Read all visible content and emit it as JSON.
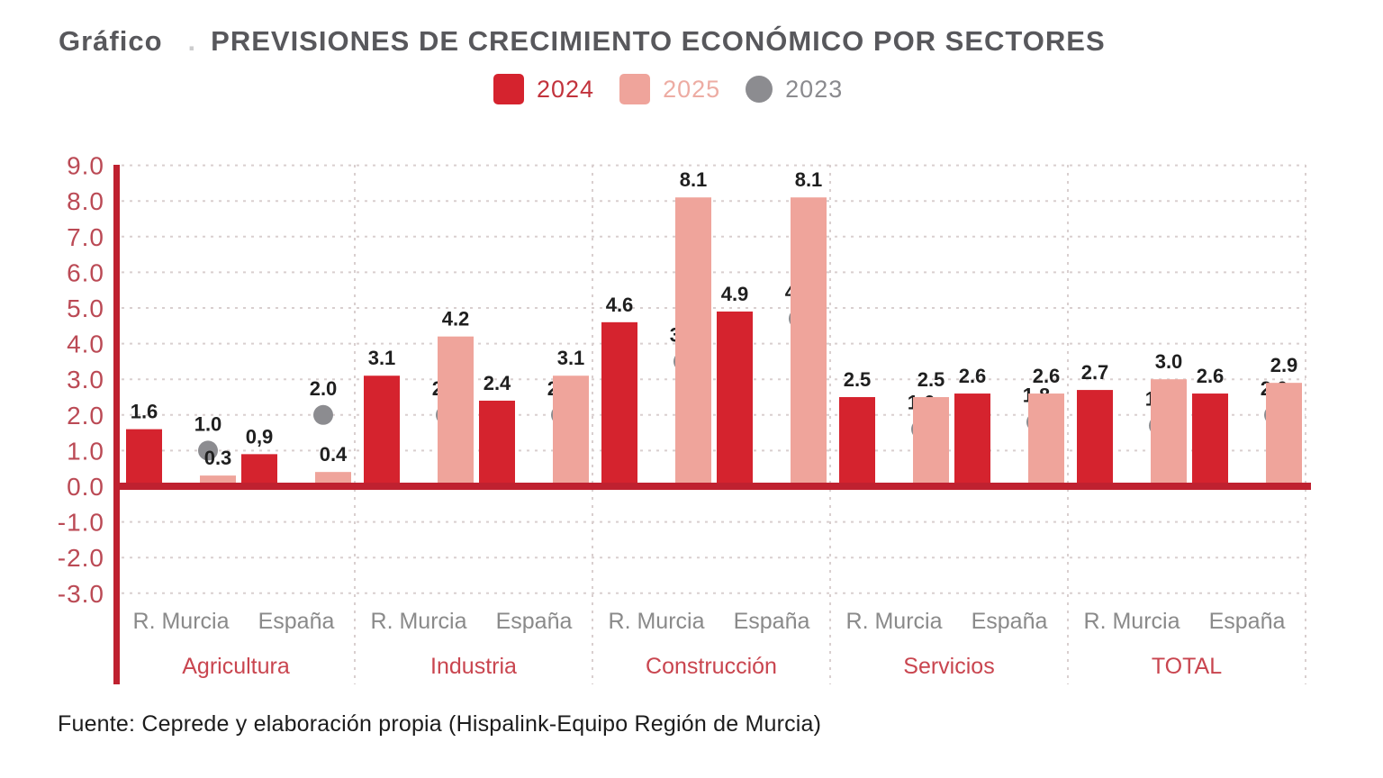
{
  "header": {
    "title_prefix": "Gráfico",
    "title_separator": ".",
    "title_main": "PREVISIONES DE CRECIMIENTO ECONÓMICO POR SECTORES"
  },
  "legend": {
    "items": [
      {
        "label": "2024",
        "shape": "square",
        "color": "#d5232e",
        "text_color": "#c2333c"
      },
      {
        "label": "2025",
        "shape": "square",
        "color": "#efa49b",
        "text_color": "#edaca3"
      },
      {
        "label": "2023",
        "shape": "circle",
        "color": "#8c8c90",
        "text_color": "#8a8a8e"
      }
    ]
  },
  "chart_data": {
    "type": "bar",
    "subtype": "grouped bars (2024, 2025) with 2023 dot markers",
    "title": "PREVISIONES DE CRECIMIENTO ECONÓMICO POR SECTORES",
    "ylim": [
      -3.0,
      9.0
    ],
    "ytick_interval": 1.0,
    "ytick_labels": [
      "9.0",
      "8.0",
      "7.0",
      "6.0",
      "5.0",
      "4.0",
      "3.0",
      "2.0",
      "1.0",
      "0.0",
      "-1.0",
      "-2.0",
      "-3.0"
    ],
    "grid": "dashed horizontal gridlines each 1.0 unit; dashed vertical separators between sector groups; thick red zero line and left axis",
    "legend_position": "top-center",
    "series_names": [
      "2024",
      "2025",
      "2023"
    ],
    "groups": [
      {
        "sector": "Agricultura",
        "entries": [
          {
            "region": "R. Murcia",
            "v2024": 1.6,
            "v2025": 0.3,
            "v2023": 1.0,
            "lbl2024": "1.6",
            "lbl2025": "0.3",
            "lbl2023": "1.0"
          },
          {
            "region": "España",
            "v2024": 0.9,
            "v2025": 0.4,
            "v2023": 2.0,
            "lbl2024": "0,9",
            "lbl2025": "0.4",
            "lbl2023": "2.0"
          }
        ]
      },
      {
        "sector": "Industria",
        "entries": [
          {
            "region": "R. Murcia",
            "v2024": 3.1,
            "v2025": 4.2,
            "v2023": 2.0,
            "lbl2024": "3.1",
            "lbl2025": "4.2",
            "lbl2023": "2.0"
          },
          {
            "region": "España",
            "v2024": 2.4,
            "v2025": 3.1,
            "v2023": 2.0,
            "lbl2024": "2.4",
            "lbl2025": "3.1",
            "lbl2023": "2.0"
          }
        ]
      },
      {
        "sector": "Construcción",
        "entries": [
          {
            "region": "R. Murcia",
            "v2024": 4.6,
            "v2025": 8.1,
            "v2023": 3.5,
            "lbl2024": "4.6",
            "lbl2025": "8.1",
            "lbl2023": "3.5"
          },
          {
            "region": "España",
            "v2024": 4.9,
            "v2025": 8.1,
            "v2023": 4.7,
            "lbl2024": "4.9",
            "lbl2025": "8.1",
            "lbl2023": "4.7"
          }
        ]
      },
      {
        "sector": "Servicios",
        "entries": [
          {
            "region": "R. Murcia",
            "v2024": 2.5,
            "v2025": 2.5,
            "v2023": 1.6,
            "lbl2024": "2.5",
            "lbl2025": "2.5",
            "lbl2023": "1.6"
          },
          {
            "region": "España",
            "v2024": 2.6,
            "v2025": 2.6,
            "v2023": 1.8,
            "lbl2024": "2.6",
            "lbl2025": "2.6",
            "lbl2023": "1.8"
          }
        ]
      },
      {
        "sector": "TOTAL",
        "entries": [
          {
            "region": "R. Murcia",
            "v2024": 2.7,
            "v2025": 3.0,
            "v2023": 1.7,
            "lbl2024": "2.7",
            "lbl2025": "3.0",
            "lbl2023": "1.7"
          },
          {
            "region": "España",
            "v2024": 2.6,
            "v2025": 2.9,
            "v2023": 2.0,
            "lbl2024": "2.6",
            "lbl2025": "2.9",
            "lbl2023": "2.0"
          }
        ]
      }
    ]
  },
  "footer": {
    "source": "Fuente: Ceprede y elaboración propia (Hispalink-Equipo Región de Murcia)"
  },
  "colors": {
    "bar2024": "#d5232e",
    "bar2025": "#efa49b",
    "dot2023": "#8c8c90",
    "axis": "#bf2130",
    "ytick": "#bb4a55",
    "sector_label": "#c9454f",
    "region_label": "#8a8a8a",
    "title": "#58585c",
    "grid": "#d9cfcf",
    "value_label": "#1f1f1f",
    "background": "#ffffff"
  }
}
